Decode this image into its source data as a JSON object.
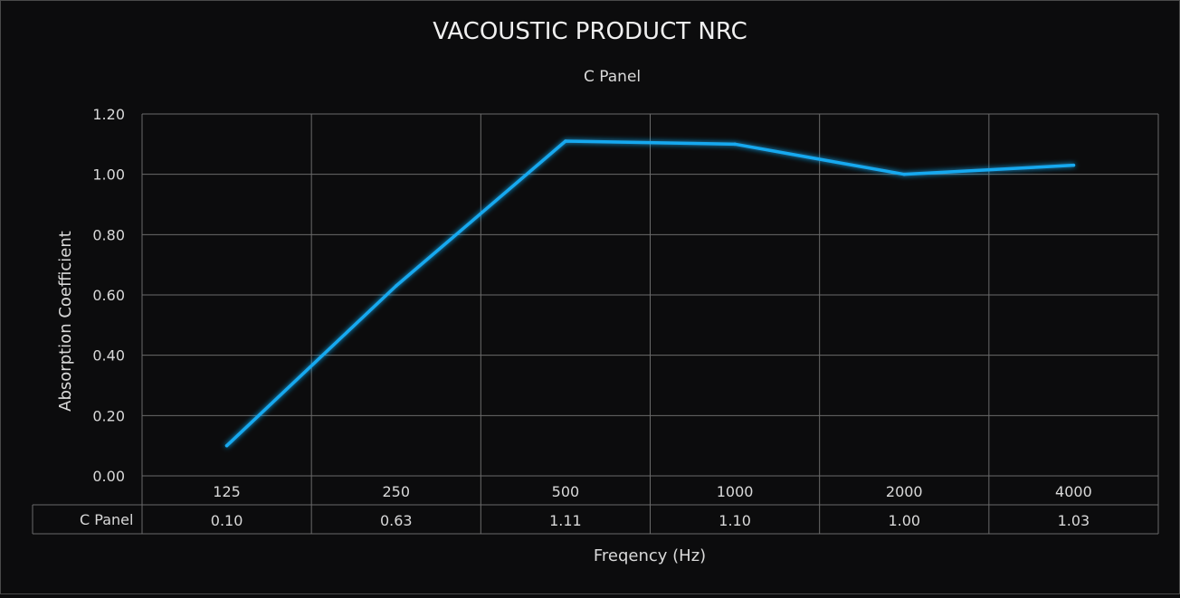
{
  "chart_data": {
    "type": "line",
    "title": "VACOUSTIC PRODUCT NRC",
    "xlabel": "Freqency (Hz)",
    "ylabel": "Absorption Coefficient",
    "categories": [
      "125",
      "250",
      "500",
      "1000",
      "2000",
      "4000"
    ],
    "series": [
      {
        "name": "C Panel",
        "values": [
          0.1,
          0.63,
          1.11,
          1.1,
          1.0,
          1.03
        ],
        "value_labels": [
          "0.10",
          "0.63",
          "1.11",
          "1.10",
          "1.00",
          "1.03"
        ],
        "color": "#19a9f0"
      }
    ],
    "ylim": [
      0,
      1.2
    ],
    "yticks": [
      0,
      0.2,
      0.4,
      0.6,
      0.8,
      1.0,
      1.2
    ],
    "ytick_labels": [
      "0.00",
      "0.20",
      "0.40",
      "0.60",
      "0.80",
      "1.00",
      "1.20"
    ],
    "grid": true,
    "legend_position": "top-center",
    "data_table": true,
    "colors": {
      "background": "#0c0c0d",
      "grid": "#6a6a6a",
      "text": "#d9d9d9",
      "title": "#f0f0f0"
    }
  }
}
